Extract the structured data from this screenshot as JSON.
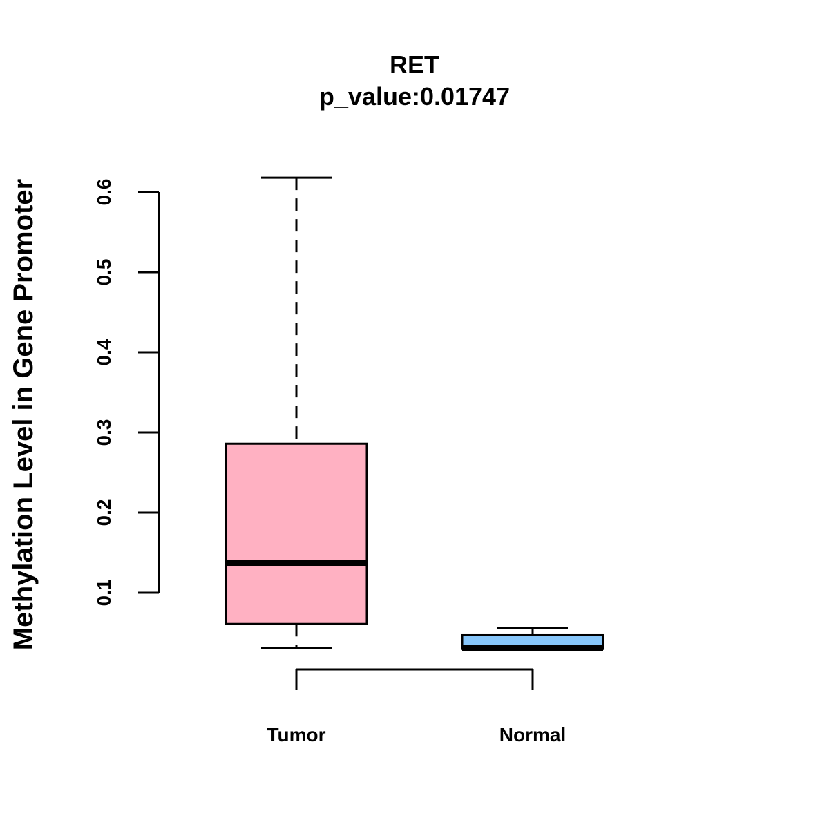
{
  "chart_data": {
    "type": "boxplot",
    "title": "RET",
    "subtitle": "p_value:0.01747",
    "xlabel": "",
    "ylabel": "Methylation Level in Gene Promoter",
    "ylim": [
      0.1,
      0.6
    ],
    "yticks": [
      "0.1",
      "0.2",
      "0.3",
      "0.4",
      "0.5",
      "0.6"
    ],
    "categories": [
      "Tumor",
      "Normal"
    ],
    "series": [
      {
        "name": "Tumor",
        "min": 0.031,
        "q1": 0.061,
        "median": 0.137,
        "q3": 0.286,
        "max": 0.618,
        "color": "#FFB1C2"
      },
      {
        "name": "Normal",
        "min": 0.029,
        "q1": 0.03,
        "median": 0.031,
        "q3": 0.047,
        "max": 0.056,
        "color": "#87C6FA"
      }
    ]
  }
}
